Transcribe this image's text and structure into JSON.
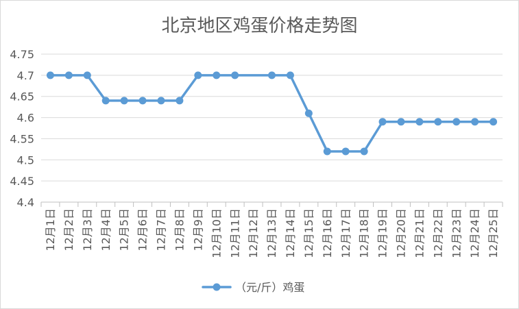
{
  "chart_data": {
    "type": "line",
    "title": "北京地区鸡蛋价格走势图",
    "categories": [
      "12月1日",
      "12月2日",
      "12月3日",
      "12月4日",
      "12月5日",
      "12月6日",
      "12月7日",
      "12月8日",
      "12月9日",
      "12月10日",
      "12月11日",
      "12月12日",
      "12月13日",
      "12月14日",
      "12月15日",
      "12月16日",
      "12月17日",
      "12月18日",
      "12月19日",
      "12月20日",
      "12月21日",
      "12月22日",
      "12月23日",
      "12月24日",
      "12月25日"
    ],
    "series": [
      {
        "name": "（元/斤）鸡蛋",
        "values": [
          4.7,
          4.7,
          4.7,
          4.64,
          4.64,
          4.64,
          4.64,
          4.64,
          4.7,
          4.7,
          4.7,
          null,
          4.7,
          4.7,
          4.61,
          4.52,
          4.52,
          4.52,
          4.59,
          4.59,
          4.59,
          4.59,
          4.59,
          4.59,
          4.59
        ]
      }
    ],
    "ylim": [
      4.4,
      4.75
    ],
    "yticks": [
      4.4,
      4.45,
      4.5,
      4.55,
      4.6,
      4.65,
      4.7,
      4.75
    ],
    "grid": true,
    "legend": "bottom",
    "colors": {
      "series": "#5b9bd5",
      "text": "#595959",
      "grid": "#d9d9d9",
      "axis": "#bfbfbf",
      "border": "#d9d9d9"
    }
  }
}
